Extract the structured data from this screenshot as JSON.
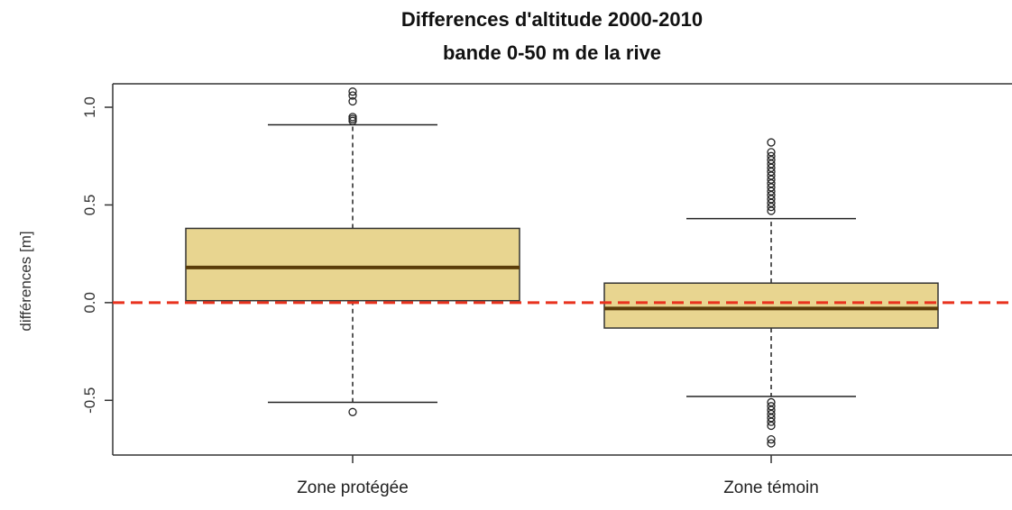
{
  "chart_data": {
    "type": "boxplot",
    "title": "Differences d'altitude 2000-2010",
    "subtitle": "bande 0-50 m de la rive",
    "xlabel": "",
    "ylabel": "différences [m]",
    "ylim": [
      -0.78,
      1.12
    ],
    "yticks": [
      -0.5,
      0.0,
      0.5,
      1.0
    ],
    "ytick_labels": [
      "-0.5",
      "0.0",
      "0.5",
      "1.0"
    ],
    "reference_line": {
      "y": 0.0,
      "style": "dashed",
      "color": "#e8321e"
    },
    "box_fill": "#e8d590",
    "median_color": "#5a3c0a",
    "grid": false,
    "legend": "none",
    "categories": [
      "Zone protégée",
      "Zone témoin"
    ],
    "boxes": [
      {
        "category": "Zone protégée",
        "whisker_low": -0.51,
        "q1": 0.01,
        "median": 0.18,
        "q3": 0.38,
        "whisker_high": 0.91,
        "outliers": [
          1.08,
          1.06,
          1.03,
          0.95,
          0.94,
          0.93,
          -0.56
        ]
      },
      {
        "category": "Zone témoin",
        "whisker_low": -0.48,
        "q1": -0.13,
        "median": -0.03,
        "q3": 0.1,
        "whisker_high": 0.43,
        "outliers": [
          0.82,
          0.77,
          0.75,
          0.73,
          0.71,
          0.69,
          0.67,
          0.65,
          0.63,
          0.61,
          0.59,
          0.57,
          0.55,
          0.53,
          0.51,
          0.49,
          0.47,
          -0.51,
          -0.53,
          -0.55,
          -0.57,
          -0.59,
          -0.61,
          -0.63,
          -0.7,
          -0.72
        ]
      }
    ]
  }
}
